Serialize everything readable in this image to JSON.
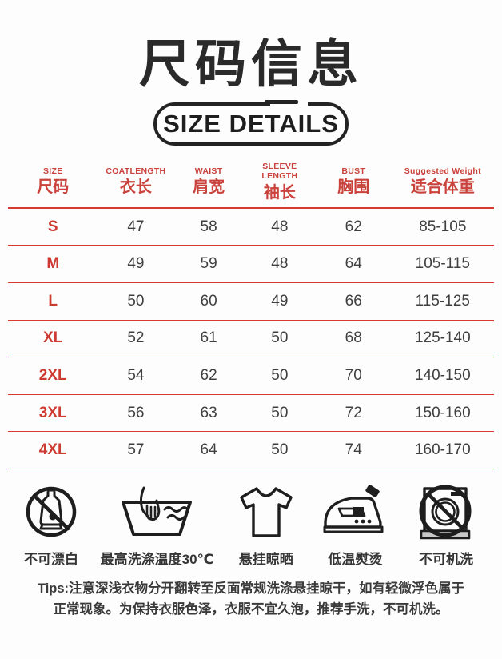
{
  "page": {
    "background": "#fdfdfd"
  },
  "header": {
    "title": "尺码信息",
    "subtitle": "SIZE DETAILS"
  },
  "table": {
    "columns": [
      {
        "en": "SIZE",
        "zh": "尺码"
      },
      {
        "en": "COATLENGTH",
        "zh": "衣长"
      },
      {
        "en": "WAIST",
        "zh": "肩宽"
      },
      {
        "en": "SLEEVE LENGTH",
        "zh": "袖长"
      },
      {
        "en": "BUST",
        "zh": "胸围"
      },
      {
        "en": "Suggested Weight",
        "zh": "适合体重"
      }
    ],
    "rows": [
      {
        "size": "S",
        "values": [
          "47",
          "58",
          "48",
          "62",
          "85-105"
        ]
      },
      {
        "size": "M",
        "values": [
          "49",
          "59",
          "48",
          "64",
          "105-115"
        ]
      },
      {
        "size": "L",
        "values": [
          "50",
          "60",
          "49",
          "66",
          "115-125"
        ]
      },
      {
        "size": "XL",
        "values": [
          "52",
          "61",
          "50",
          "68",
          "125-140"
        ]
      },
      {
        "size": "2XL",
        "values": [
          "54",
          "62",
          "50",
          "70",
          "140-150"
        ]
      },
      {
        "size": "3XL",
        "values": [
          "56",
          "63",
          "50",
          "72",
          "150-160"
        ]
      },
      {
        "size": "4XL",
        "values": [
          "57",
          "64",
          "50",
          "74",
          "160-170"
        ]
      }
    ],
    "accent_text_red": "#c9423c",
    "size_letter_red": "#cd3a31",
    "line_red": "#d93a30"
  },
  "care": {
    "items": [
      {
        "icon": "no-bleach-icon",
        "label": "不可漂白"
      },
      {
        "icon": "hand-wash-30-icon",
        "label": "最高洗涤温度30℃"
      },
      {
        "icon": "hang-dry-icon",
        "label": "悬挂晾晒"
      },
      {
        "icon": "low-temp-iron-icon",
        "label": "低温熨烫"
      },
      {
        "icon": "no-machine-wash-icon",
        "label": "不可机洗"
      }
    ]
  },
  "tips": {
    "text": "Tips:注意深浅衣物分开翻转至反面常规洗涤悬挂晾干，如有轻微浮色属于正常现象。为保持衣服色泽，衣服不宜久泡，推荐手洗，不可机洗。"
  }
}
